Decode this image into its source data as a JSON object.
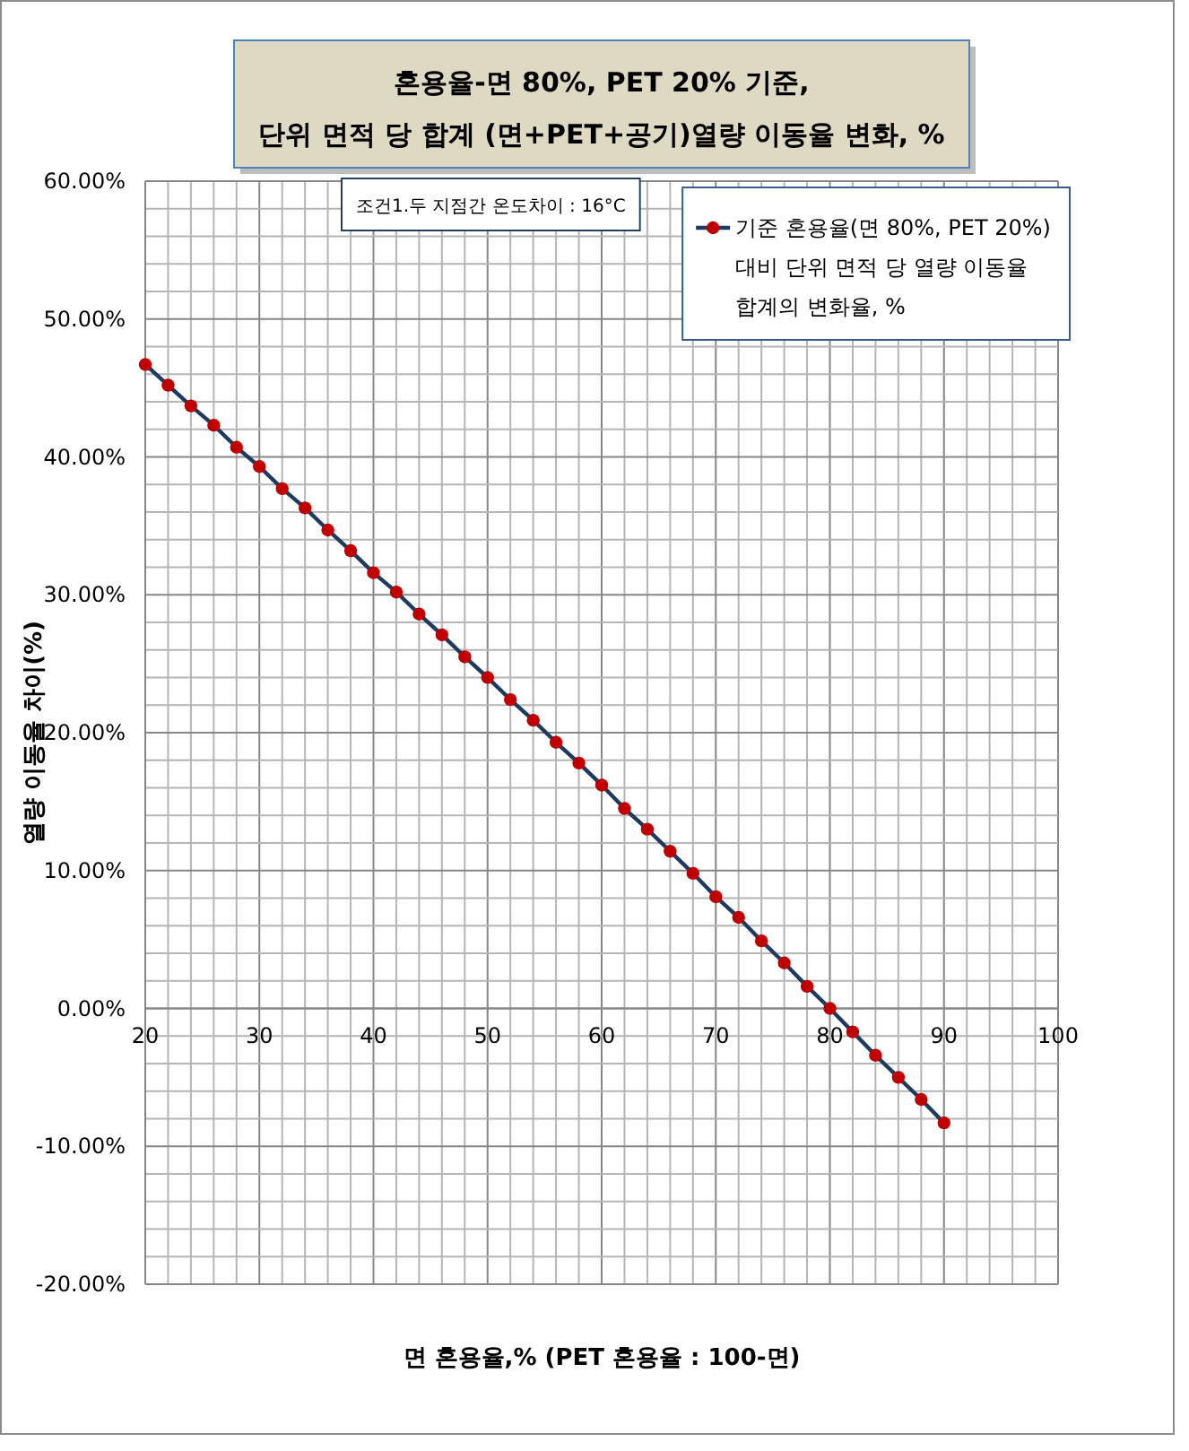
{
  "chart_data": {
    "type": "line",
    "title": "혼용율-면 80%, PET 20% 기준,\n단위 면적 당 합계 (면+PET+공기)열량 이동율 변화, %",
    "xlabel": "면 혼용율,% (PET 혼용율 : 100-면)",
    "ylabel": "열량 이동율 차이(%)",
    "annotations": [
      "조건1.두 지점간 온도차이 : 16°C"
    ],
    "x": [
      20,
      22,
      24,
      26,
      28,
      30,
      32,
      34,
      36,
      38,
      40,
      42,
      44,
      46,
      48,
      50,
      52,
      54,
      56,
      58,
      60,
      62,
      64,
      66,
      68,
      70,
      72,
      74,
      76,
      78,
      80,
      82,
      84,
      86,
      88,
      90
    ],
    "series": [
      {
        "name": "기준 혼용율(면 80%, PET 20%)\n대비 단위 면적 당 열량 이동율\n합계의 변화율, %",
        "color": "#1f3a5f",
        "colors": [
          "#c00000",
          "#c00000",
          "#c00000",
          "#c00000",
          "#c00000",
          "#c00000",
          "#c00000",
          "#c00000",
          "#c00000",
          "#c00000",
          "#c00000",
          "#c00000",
          "#c00000",
          "#c00000",
          "#c00000",
          "#c00000",
          "#c00000",
          "#c00000",
          "#c00000",
          "#c00000",
          "#c00000",
          "#c00000",
          "#c00000",
          "#c00000",
          "#c00000",
          "#c00000",
          "#c00000",
          "#c00000",
          "#c00000",
          "#c00000",
          "#c00000",
          "#c00000",
          "#c00000",
          "#c00000",
          "#c00000",
          "#c00000"
        ],
        "values": [
          46.7,
          45.2,
          43.7,
          42.3,
          40.7,
          39.3,
          37.7,
          36.3,
          34.7,
          33.2,
          31.6,
          30.2,
          28.6,
          27.1,
          25.5,
          24.0,
          22.4,
          20.9,
          19.3,
          17.8,
          16.2,
          14.5,
          13.0,
          11.4,
          9.8,
          8.1,
          6.6,
          4.9,
          3.3,
          1.6,
          0.0,
          -1.7,
          -3.4,
          -5.0,
          -6.6,
          -8.3
        ]
      }
    ],
    "xlim": [
      20,
      100
    ],
    "ylim": [
      -20,
      60
    ],
    "xticks": [
      20,
      {
        "value": 22,
        "label": null
      },
      {
        "value": 24,
        "label": null
      },
      {
        "value": 26,
        "label": null
      },
      {
        "value": 28,
        "label": null
      },
      30,
      {
        "value": 32,
        "label": null
      },
      {
        "value": 34,
        "label": null
      },
      {
        "value": 36,
        "label": null
      },
      {
        "value": 38,
        "label": null
      },
      40,
      {
        "value": 42,
        "label": null
      },
      {
        "value": 44,
        "label": null
      },
      {
        "value": 46,
        "label": null
      },
      {
        "value": 48,
        "label": null
      },
      50,
      {
        "value": 52,
        "label": null
      },
      {
        "value": 54,
        "label": null
      },
      {
        "value": 56,
        "label": null
      },
      {
        "value": 58,
        "label": null
      },
      60,
      {
        "value": 62,
        "label": null
      },
      {
        "value": 64,
        "label": null
      },
      {
        "value": 66,
        "label": null
      },
      {
        "value": 68,
        "label": null
      },
      70,
      {
        "value": 72,
        "label": null
      },
      {
        "value": 74,
        "label": null
      },
      {
        "value": 76,
        "label": null
      },
      {
        "value": 78,
        "label": null
      },
      80,
      {
        "value": 82,
        "label": null
      },
      {
        "value": 84,
        "label": null
      },
      {
        "value": 86,
        "label": null
      },
      {
        "value": 88,
        "label": null
      },
      90,
      {
        "value": 92,
        "label": null
      },
      {
        "value": 94,
        "label": null
      },
      {
        "value": 96,
        "label": null
      },
      {
        "value": 98,
        "label": null
      },
      100
    ],
    "yticks": [
      {
        "value": -20,
        "label": "-20.00%"
      },
      {
        "value": -18,
        "label": null
      },
      {
        "value": -16,
        "label": null
      },
      {
        "value": -14,
        "label": null
      },
      {
        "value": -12,
        "label": null
      },
      {
        "value": -10,
        "label": "-10.00%"
      },
      {
        "value": -8,
        "label": null
      },
      {
        "value": -6,
        "label": null
      },
      {
        "value": -4,
        "label": null
      },
      {
        "value": -2,
        "label": null
      },
      {
        "value": 0,
        "label": "0.00%"
      },
      {
        "value": 2,
        "label": null
      },
      {
        "value": 4,
        "label": null
      },
      {
        "value": 6,
        "label": null
      },
      {
        "value": 8,
        "label": null
      },
      {
        "value": 10,
        "label": "10.00%"
      },
      {
        "value": 12,
        "label": null
      },
      {
        "value": 14,
        "label": null
      },
      {
        "value": 16,
        "label": null
      },
      {
        "value": 18,
        "label": null
      },
      {
        "value": 20,
        "label": "20.00%"
      },
      {
        "value": 22,
        "label": null
      },
      {
        "value": 24,
        "label": null
      },
      {
        "value": 26,
        "label": null
      },
      {
        "value": 28,
        "label": null
      },
      {
        "value": 30,
        "label": "30.00%"
      },
      {
        "value": 32,
        "label": null
      },
      {
        "value": 34,
        "label": null
      },
      {
        "value": 36,
        "label": null
      },
      {
        "value": 38,
        "label": null
      },
      {
        "value": 40,
        "label": "40.00%"
      },
      {
        "value": 42,
        "label": null
      },
      {
        "value": 44,
        "label": null
      },
      {
        "value": 46,
        "label": null
      },
      {
        "value": 48,
        "label": null
      },
      {
        "value": 50,
        "label": "50.00%"
      },
      {
        "value": 52,
        "label": null
      },
      {
        "value": 54,
        "label": null
      },
      {
        "value": 56,
        "label": null
      },
      {
        "value": 58,
        "label": null
      },
      {
        "value": 60,
        "label": "60.00%"
      }
    ],
    "grid": true,
    "legend": "top right",
    "marker": "circle",
    "line_style": "solid"
  }
}
